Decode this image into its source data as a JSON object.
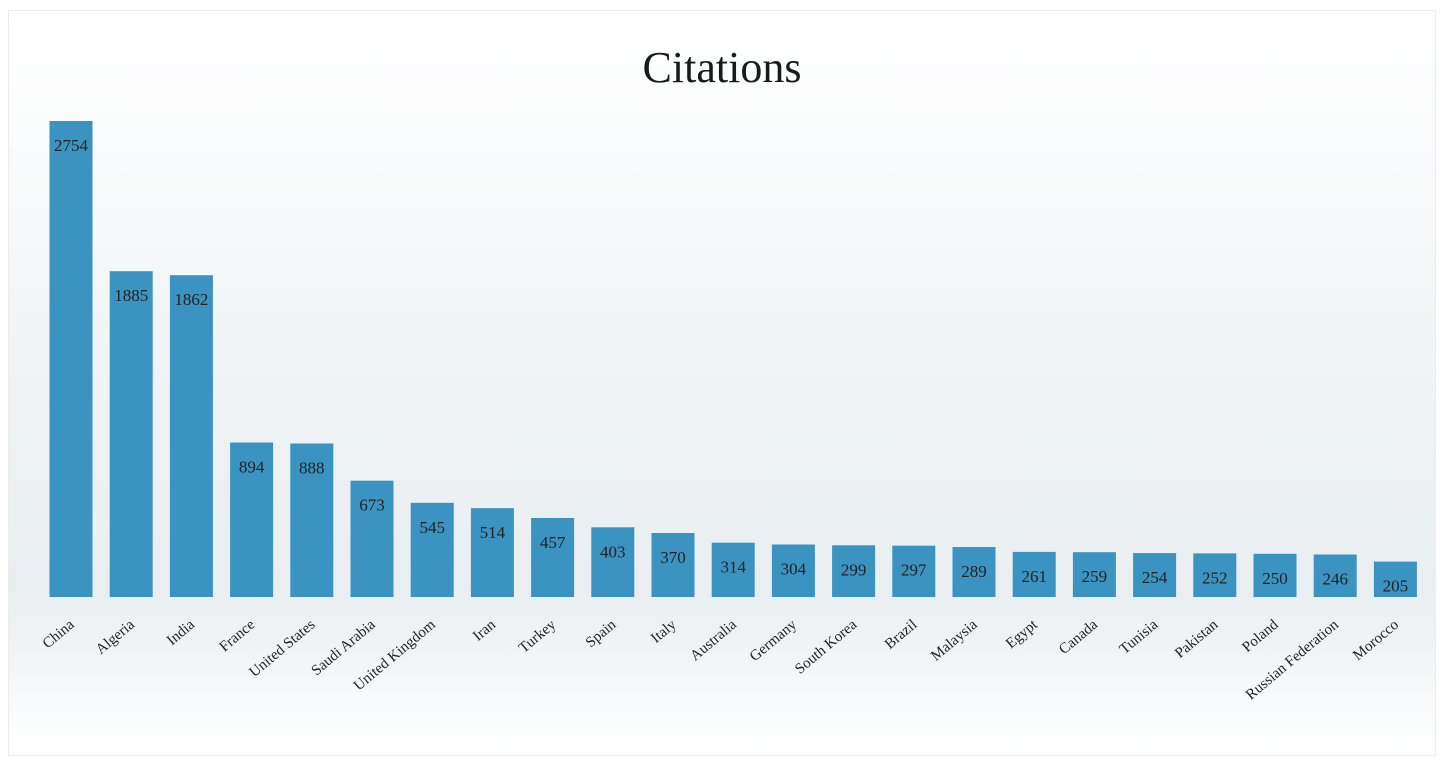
{
  "chart_data": {
    "type": "bar",
    "title": "Citations",
    "categories": [
      "China",
      "Algeria",
      "India",
      "France",
      "United States",
      "Saudi Arabia",
      "United Kingdom",
      "Iran",
      "Turkey",
      "Spain",
      "Italy",
      "Australia",
      "Germany",
      "South Korea",
      "Brazil",
      "Malaysia",
      "Egypt",
      "Canada",
      "Tunisia",
      "Pakistan",
      "Poland",
      "Russian Federation",
      "Morocco"
    ],
    "values": [
      2754,
      1885,
      1862,
      894,
      888,
      673,
      545,
      514,
      457,
      403,
      370,
      314,
      304,
      299,
      297,
      289,
      261,
      259,
      254,
      252,
      250,
      246,
      205
    ],
    "xlabel": "",
    "ylabel": "",
    "ylim": [
      0,
      2754
    ],
    "grid": false,
    "legend": "none",
    "bar_color": "#3a93c0"
  }
}
